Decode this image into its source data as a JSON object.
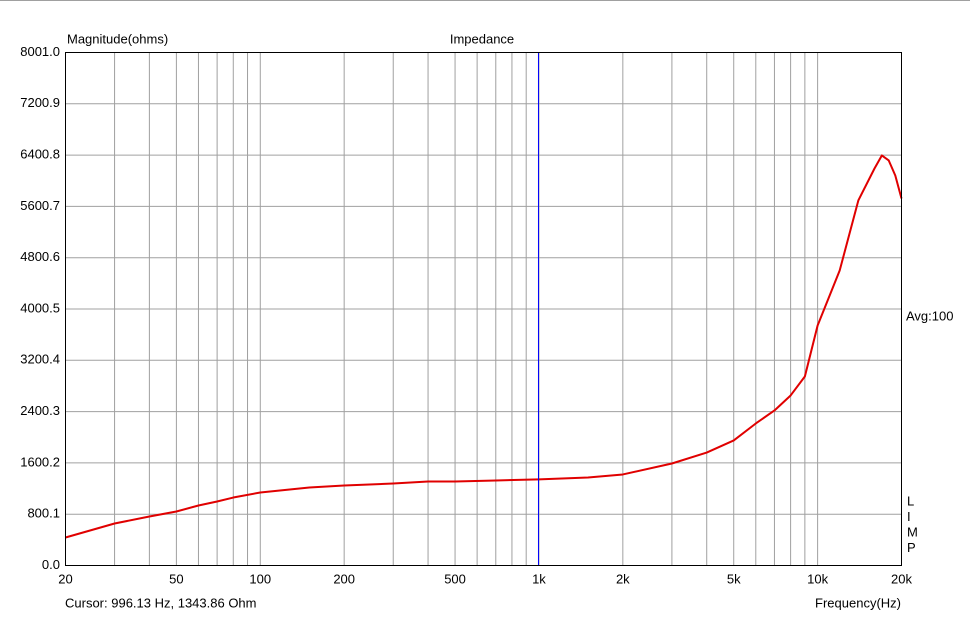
{
  "chart_data": {
    "type": "line",
    "title": "Impedance",
    "y_label": "Magnitude(ohms)",
    "x_label": "Frequency(Hz)",
    "average_label": "Avg:100",
    "side_letters": [
      "L",
      "I",
      "M",
      "P"
    ],
    "xscale": "log",
    "xlim": [
      20,
      20000
    ],
    "xticks": [
      20,
      50,
      100,
      200,
      500,
      {
        "value": 1000,
        "label": "1k"
      },
      {
        "value": 2000,
        "label": "2k"
      },
      {
        "value": 5000,
        "label": "5k"
      },
      {
        "value": 10000,
        "label": "10k"
      },
      {
        "value": 20000,
        "label": "20k"
      }
    ],
    "x_minor_ticks": [
      30,
      40,
      60,
      70,
      80,
      90,
      300,
      400,
      600,
      700,
      800,
      900,
      3000,
      4000,
      6000,
      7000,
      8000,
      9000
    ],
    "ylim": [
      0,
      8001
    ],
    "yticks": [
      {
        "value": 0,
        "label": "0.0"
      },
      800.1,
      1600.2,
      2400.3,
      3200.4,
      4000.5,
      4800.6,
      5600.7,
      6400.8,
      7200.9,
      {
        "value": 8001,
        "label": "8001.0"
      }
    ],
    "grid": true,
    "color": "#e00000",
    "x": [
      20,
      30,
      40,
      50,
      60,
      70,
      80,
      100,
      150,
      200,
      300,
      400,
      500,
      700,
      1000,
      1500,
      2000,
      3000,
      4000,
      5000,
      6000,
      7000,
      8000,
      9000,
      10000,
      12000,
      14000,
      16000,
      17000,
      18000,
      19000,
      20000
    ],
    "values": [
      437,
      655,
      764,
      842,
      936,
      998,
      1060,
      1139,
      1217,
      1248,
      1279,
      1310,
      1310,
      1326,
      1343,
      1373,
      1420,
      1591,
      1762,
      1950,
      2215,
      2418,
      2652,
      2948,
      3743,
      4601,
      5693,
      6192,
      6395,
      6317,
      6083,
      5724
    ],
    "cursor": {
      "label": "Cursor: 996.13 Hz, 1343.86 Ohm",
      "x": 996.13,
      "color": "#0000ff"
    }
  }
}
